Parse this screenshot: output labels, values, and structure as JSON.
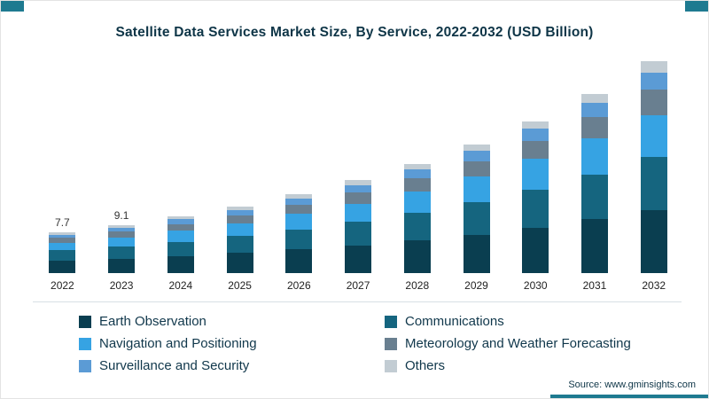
{
  "theme": {
    "accent": "#1e7a90",
    "title_color": "#0e3547"
  },
  "header": {
    "title": "Satellite Data Services Market Size, By Service, 2022-2032 (USD Billion)"
  },
  "source": {
    "prefix": "Source:",
    "link_text": "www.gminsights.com"
  },
  "chart_data": {
    "type": "bar",
    "stacked": true,
    "title": "Satellite Data Services Market Size, By Service, 2022-2032 (USD Billion)",
    "xlabel": "",
    "ylabel": "",
    "ylim": [
      0,
      42
    ],
    "grid": false,
    "legend_position": "bottom",
    "categories": [
      "2022",
      "2023",
      "2024",
      "2025",
      "2026",
      "2027",
      "2028",
      "2029",
      "2030",
      "2031",
      "2032"
    ],
    "bar_labels": [
      "7.7",
      "9.1",
      "",
      "",
      "",
      "",
      "",
      "",
      "",
      "",
      ""
    ],
    "totals": [
      7.7,
      9.1,
      10.7,
      12.6,
      14.9,
      17.6,
      20.7,
      24.4,
      28.8,
      34.0,
      40.1
    ],
    "series": [
      {
        "name": "Earth Observation",
        "color": "#0a3e50",
        "values": [
          2.4,
          2.7,
          3.2,
          3.8,
          4.5,
          5.3,
          6.2,
          7.3,
          8.6,
          10.2,
          12.0
        ]
      },
      {
        "name": "Communications",
        "color": "#15657f",
        "values": [
          1.9,
          2.3,
          2.7,
          3.2,
          3.7,
          4.4,
          5.2,
          6.1,
          7.2,
          8.5,
          10.0
        ]
      },
      {
        "name": "Navigation and Positioning",
        "color": "#36a3e3",
        "values": [
          1.5,
          1.8,
          2.1,
          2.5,
          3.0,
          3.5,
          4.1,
          4.9,
          5.8,
          6.8,
          8.0
        ]
      },
      {
        "name": "Meteorology and Weather Forecasting",
        "color": "#697f90",
        "values": [
          0.9,
          1.1,
          1.3,
          1.5,
          1.8,
          2.1,
          2.5,
          2.9,
          3.5,
          4.1,
          4.8
        ]
      },
      {
        "name": "Surveillance and Security",
        "color": "#5b9bd5",
        "values": [
          0.6,
          0.7,
          0.9,
          1.0,
          1.2,
          1.4,
          1.7,
          2.0,
          2.3,
          2.7,
          3.2
        ]
      },
      {
        "name": "Others",
        "color": "#c2ccd3",
        "values": [
          0.4,
          0.5,
          0.5,
          0.6,
          0.7,
          0.9,
          1.0,
          1.2,
          1.4,
          1.7,
          2.1
        ]
      }
    ]
  }
}
